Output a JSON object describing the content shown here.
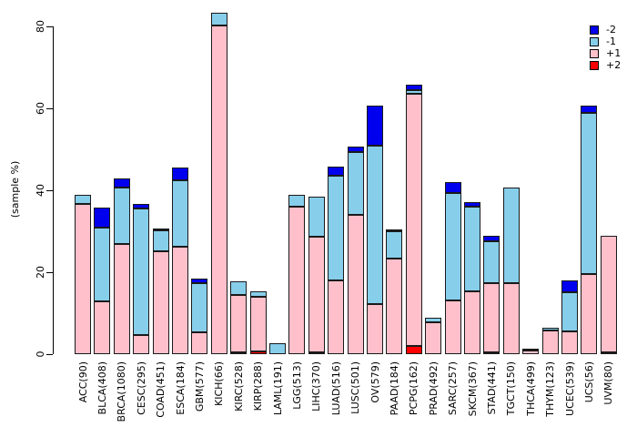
{
  "figure": {
    "background": "#ffffff",
    "axis_color": "#000000",
    "bar_border_color": "#1a1a1a"
  },
  "legend": {
    "position": "top-right",
    "entries": [
      {
        "label": "-2",
        "color": "#0000EE"
      },
      {
        "label": "-1",
        "color": "#87CEEB"
      },
      {
        "label": "+1",
        "color": "#FFC0CB"
      },
      {
        "label": "+2",
        "color": "#FF0000"
      }
    ]
  },
  "chart_data": {
    "type": "bar",
    "stacked": true,
    "title": "",
    "xlabel": "",
    "ylabel": "(sample %)",
    "ylim": [
      0,
      80
    ],
    "y_ticks": [
      0,
      20,
      40,
      60,
      80
    ],
    "grid": false,
    "legend_position": "top-right",
    "stack_order_bottom_to_top": [
      "+2",
      "+1",
      "-1",
      "-2"
    ],
    "categories": [
      "ACC(90)",
      "BLCA(408)",
      "BRCA(1080)",
      "CESC(295)",
      "COAD(451)",
      "ESCA(184)",
      "GBM(577)",
      "KICH(66)",
      "KIRC(528)",
      "KIRP(288)",
      "LAML(191)",
      "LGG(513)",
      "LIHC(370)",
      "LUAD(516)",
      "LUSC(501)",
      "OV(579)",
      "PAAD(184)",
      "PCPG(162)",
      "PRAD(492)",
      "SARC(257)",
      "SKCM(367)",
      "STAD(441)",
      "TGCT(150)",
      "THCA(499)",
      "THYM(123)",
      "UCEC(539)",
      "UCS(56)",
      "UVM(80)"
    ],
    "series": [
      {
        "name": "+2",
        "color": "#FF0000",
        "values": [
          0,
          0,
          0,
          0,
          0,
          0,
          0,
          0,
          0.4,
          0.7,
          0,
          0,
          0.3,
          0,
          0,
          0,
          0,
          1.9,
          0,
          0,
          0,
          0.3,
          0,
          0,
          0,
          0,
          0,
          0.5
        ]
      },
      {
        "name": "+1",
        "color": "#FFC0CB",
        "values": [
          36.7,
          12.9,
          27.0,
          4.7,
          25.1,
          26.2,
          5.3,
          80.3,
          14.0,
          13.2,
          0,
          36.1,
          28.4,
          18.0,
          34.1,
          12.2,
          23.4,
          61.7,
          7.7,
          13.2,
          15.3,
          17.0,
          17.3,
          0.8,
          5.7,
          5.6,
          19.6,
          28.3
        ]
      },
      {
        "name": "-1",
        "color": "#87CEEB",
        "values": [
          2.2,
          18.0,
          13.6,
          30.8,
          5.1,
          16.2,
          12.1,
          3.0,
          3.4,
          1.4,
          2.6,
          2.9,
          9.7,
          25.6,
          15.2,
          38.7,
          6.5,
          0.9,
          1.2,
          26.1,
          20.7,
          10.2,
          23.3,
          0.6,
          0.8,
          9.5,
          39.3,
          0
        ]
      },
      {
        "name": "-2",
        "color": "#0000EE",
        "values": [
          0,
          4.9,
          2.4,
          1.2,
          0.4,
          3.1,
          1.1,
          0,
          0,
          0,
          0,
          0,
          0,
          2.1,
          1.4,
          9.7,
          0.5,
          1.2,
          0,
          2.7,
          1.1,
          1.4,
          0,
          0,
          0,
          3.0,
          1.8,
          0
        ]
      }
    ]
  }
}
